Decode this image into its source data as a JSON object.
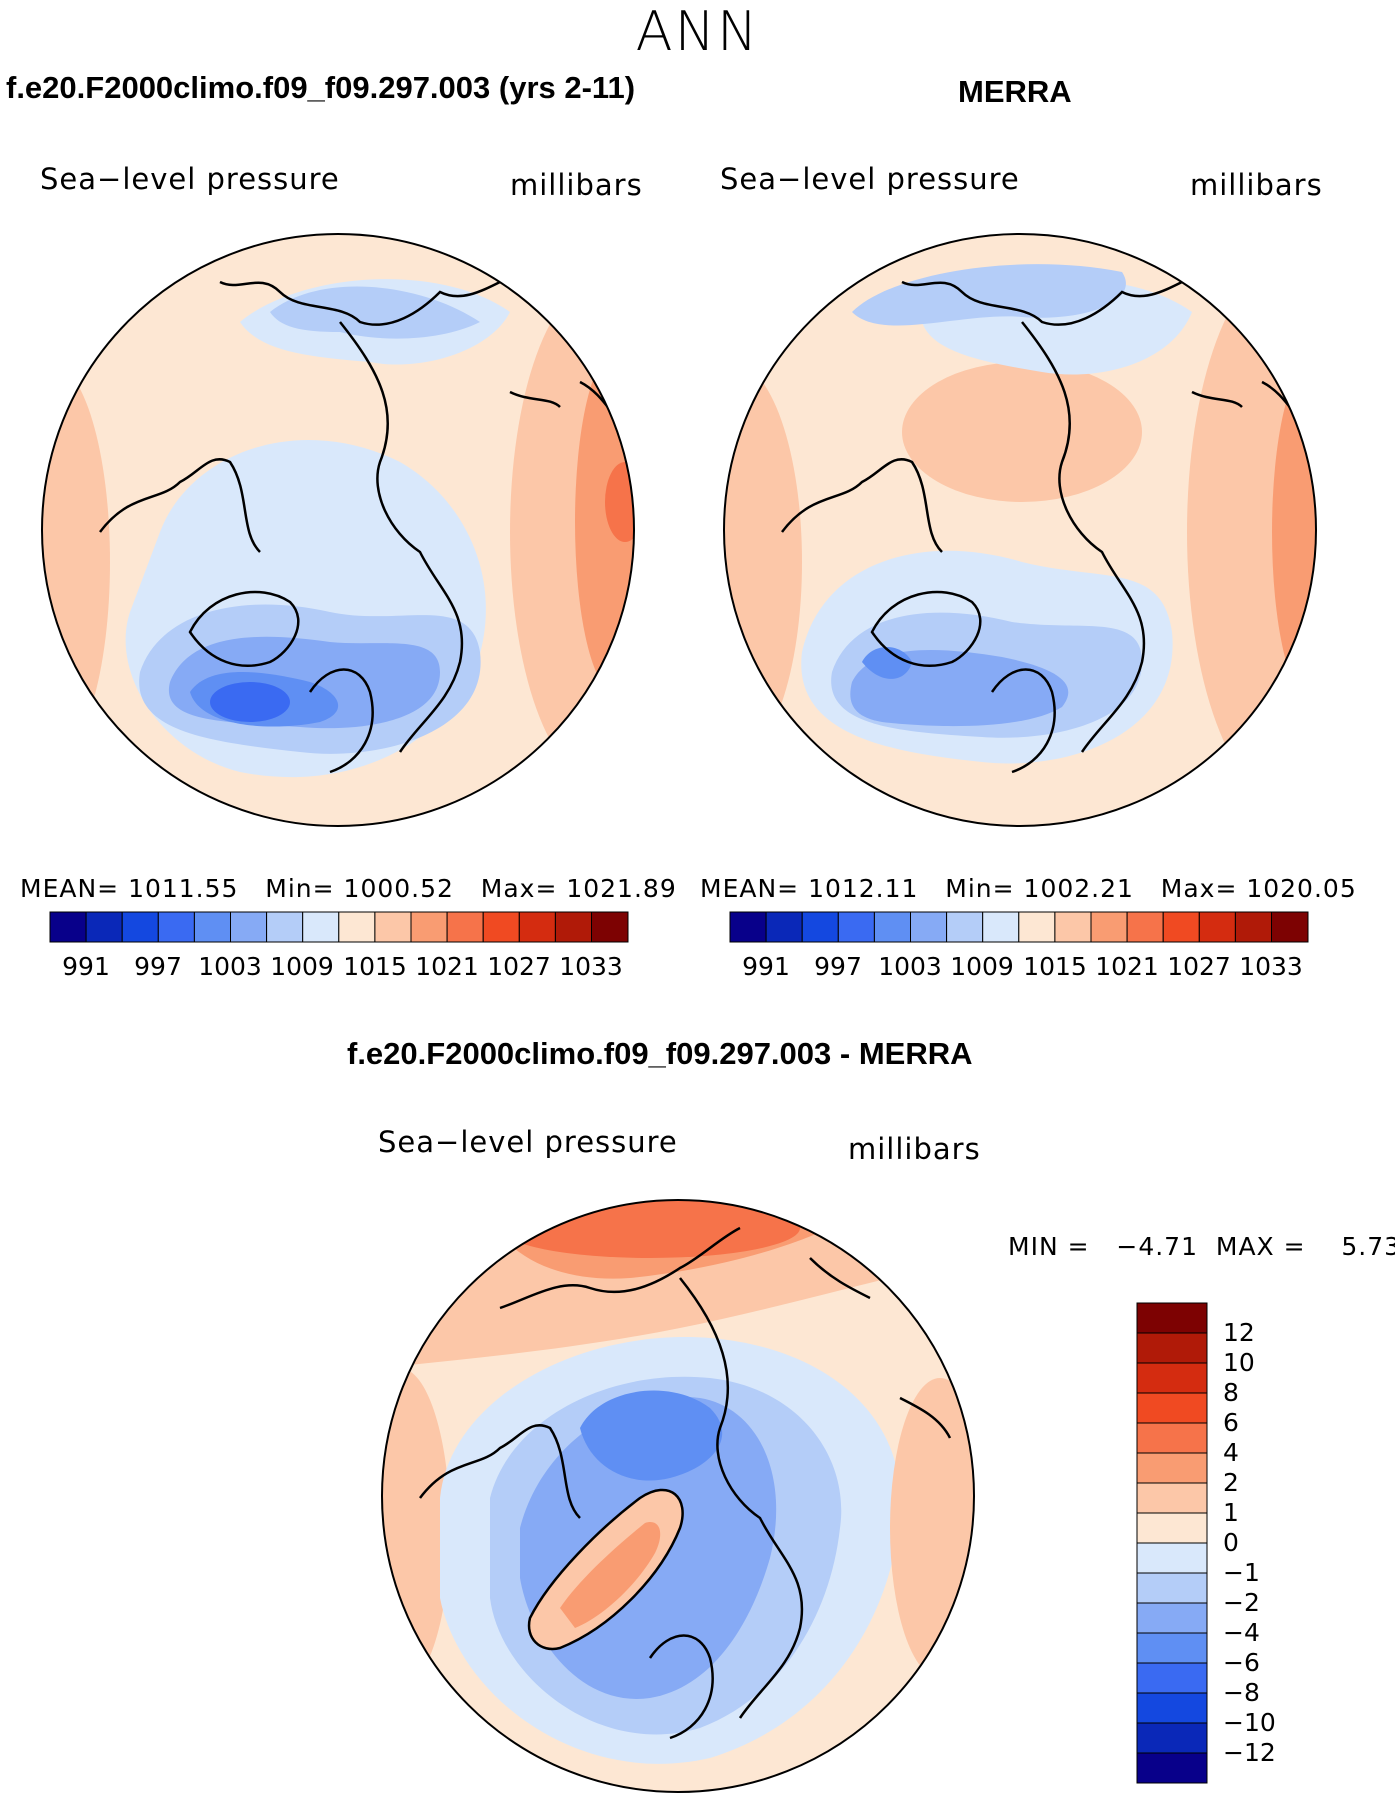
{
  "figure": {
    "title": "ANN",
    "colors": {
      "d991": "#08008a",
      "d994": "#0a28b8",
      "d997": "#1448e0",
      "d1000": "#3a6af2",
      "d1003": "#5f8ff3",
      "d1006": "#86aaf5",
      "d1009": "#b4cdf8",
      "d1012": "#d9e8fb",
      "d1015": "#fde7d3",
      "d1018": "#fcc7a8",
      "d1021": "#f99c72",
      "d1024": "#f6734a",
      "d1027": "#f04a22",
      "d1030": "#d42c10",
      "d1033": "#b01a08",
      "d1036": "#7d0202"
    }
  },
  "panels": [
    {
      "title": "f.e20.F2000climo.f09_f09.297.003 (yrs 2-11)",
      "field": "Sea−level pressure",
      "units": "millibars",
      "stats": "MEAN= 1011.55   Min= 1000.52   Max= 1021.89",
      "colorbar_labels": [
        "991",
        "997",
        "1003",
        "1009",
        "1015",
        "1021",
        "1027",
        "1033"
      ],
      "map_icon": "polar-stereographic-map"
    },
    {
      "title": "MERRA",
      "field": "Sea−level pressure",
      "units": "millibars",
      "stats": "MEAN= 1012.11   Min= 1002.21   Max= 1020.05",
      "colorbar_labels": [
        "991",
        "997",
        "1003",
        "1009",
        "1015",
        "1021",
        "1027",
        "1033"
      ],
      "map_icon": "polar-stereographic-map"
    }
  ],
  "difference": {
    "title": "f.e20.F2000climo.f09_f09.297.003 - MERRA",
    "field": "Sea−level pressure",
    "units": "millibars",
    "stats": "MIN =   −4.71  MAX =    5.73",
    "colorbar_labels": [
      "12",
      "10",
      "8",
      "6",
      "4",
      "2",
      "1",
      "0",
      "−1",
      "−2",
      "−4",
      "−6",
      "−8",
      "−10",
      "−12"
    ],
    "colorbar_colors": [
      "#7d0202",
      "#b01a08",
      "#d42c10",
      "#f04a22",
      "#f6734a",
      "#f99c72",
      "#fcc7a8",
      "#fde7d3",
      "#d9e8fb",
      "#b4cdf8",
      "#86aaf5",
      "#5f8ff3",
      "#3a6af2",
      "#1448e0",
      "#0a28b8",
      "#08008a"
    ]
  },
  "chart_data": {
    "type": "heatmap",
    "projection": "north polar stereographic",
    "contour_levels": [
      991,
      994,
      997,
      1000,
      1003,
      1006,
      1009,
      1012,
      1015,
      1018,
      1021,
      1024,
      1027,
      1030,
      1033
    ],
    "difference_levels": [
      -12,
      -10,
      -8,
      -6,
      -4,
      -2,
      -1,
      0,
      1,
      2,
      4,
      6,
      8,
      10,
      12
    ]
  }
}
